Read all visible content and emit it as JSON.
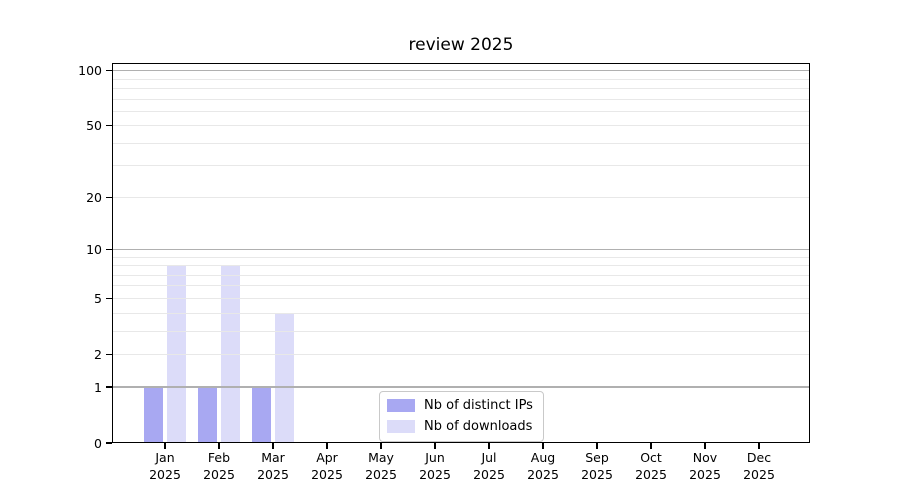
{
  "title": "review 2025",
  "colors": {
    "background": "#ffffff",
    "axis": "#000000",
    "grid_major": "#b0b0b0",
    "grid_minor": "#e8e8e8",
    "legend_border": "#c9c9c9",
    "bar_distinct_ips": "#a8a8f2",
    "bar_downloads": "#dcdcf9"
  },
  "legend": {
    "items": [
      {
        "label": "Nb of distinct IPs"
      },
      {
        "label": "Nb of downloads"
      }
    ]
  },
  "chart_data": {
    "type": "bar",
    "title": "review 2025",
    "xlabel": "",
    "ylabel": "",
    "categories": [
      "Jan 2025",
      "Feb 2025",
      "Mar 2025",
      "Apr 2025",
      "May 2025",
      "Jun 2025",
      "Jul 2025",
      "Aug 2025",
      "Sep 2025",
      "Oct 2025",
      "Nov 2025",
      "Dec 2025"
    ],
    "series": [
      {
        "name": "Nb of distinct IPs",
        "color": "#a8a8f2",
        "values": [
          1,
          1,
          1,
          0,
          0,
          0,
          0,
          0,
          0,
          0,
          0,
          0
        ]
      },
      {
        "name": "Nb of downloads",
        "color": "#dcdcf9",
        "values": [
          8,
          8,
          4,
          0,
          0,
          0,
          0,
          0,
          0,
          0,
          0,
          0
        ]
      }
    ],
    "yscale": "log1p",
    "ylim": [
      0,
      110
    ],
    "y_ticks": [
      0,
      1,
      2,
      5,
      10,
      20,
      50,
      100
    ],
    "y_grid_major": [
      1,
      10,
      100
    ],
    "y_grid_minor": [
      2,
      3,
      4,
      5,
      6,
      7,
      8,
      9,
      20,
      30,
      40,
      50,
      60,
      70,
      80,
      90
    ],
    "grid": "horizontal",
    "legend_position": "lower center"
  }
}
